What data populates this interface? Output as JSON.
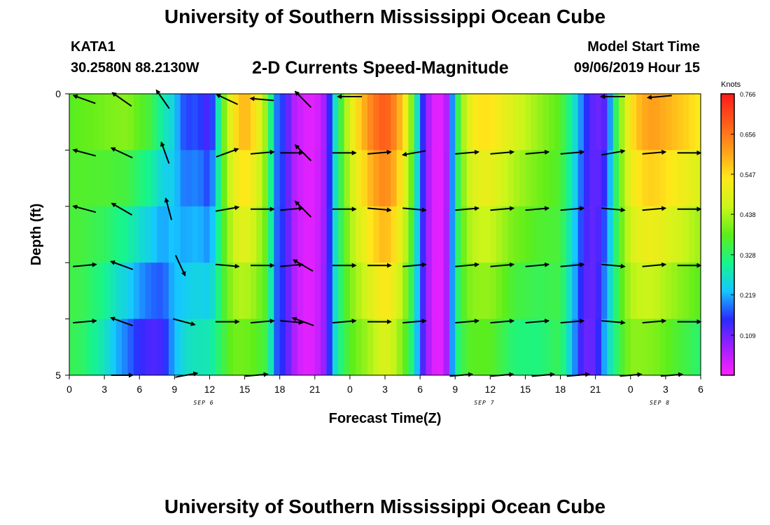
{
  "header": {
    "title": "University of Southern Mississippi Ocean Cube",
    "station": "KATA1",
    "coordinates": "30.2580N 88.2130W",
    "subtitle": "2-D Currents Speed-Magnitude",
    "model_start_label": "Model Start Time",
    "model_start_value": "09/06/2019 Hour 15"
  },
  "footer": {
    "title": "University of Southern Mississippi Ocean Cube"
  },
  "chart_data": {
    "type": "heatmap",
    "title": "2-D Currents Speed-Magnitude",
    "xlabel": "Forecast Time(Z)",
    "ylabel": "Depth (ft)",
    "x_ticks": [
      "0",
      "3",
      "6",
      "9",
      "12",
      "15",
      "18",
      "21",
      "0",
      "3",
      "6",
      "9",
      "12",
      "15",
      "18",
      "21",
      "0",
      "3",
      "6"
    ],
    "x_range_hours": [
      0,
      54
    ],
    "date_labels": [
      {
        "text": "SEP 6",
        "hour": 11.5
      },
      {
        "text": "SEP 7",
        "hour": 35.5
      },
      {
        "text": "SEP 8",
        "hour": 50.5
      }
    ],
    "y_ticks": [
      "0",
      "5"
    ],
    "ylim": [
      0,
      5
    ],
    "colorbar": {
      "label": "Knots",
      "min": 0,
      "max": 0.766,
      "ticks": [
        "0.766",
        "0.656",
        "0.547",
        "0.438",
        "0.328",
        "0.219",
        "0.109"
      ],
      "tick_values": [
        0.766,
        0.656,
        0.547,
        0.438,
        0.328,
        0.219,
        0.109
      ],
      "colors": [
        "#ff22ff",
        "#9f1fff",
        "#2a2aff",
        "#15c8ff",
        "#16f58c",
        "#5eee1a",
        "#ccf51a",
        "#ffe81a",
        "#ff9d1a",
        "#ff5a1a",
        "#ff1a1a"
      ]
    },
    "depth_levels_ft": [
      0,
      1,
      2,
      3,
      4,
      5
    ],
    "speed_profile_surface": [
      [
        0,
        0.38
      ],
      [
        2,
        0.4
      ],
      [
        4,
        0.43
      ],
      [
        5,
        0.44
      ],
      [
        7,
        0.38
      ],
      [
        8,
        0.3
      ],
      [
        9,
        0.25
      ],
      [
        9.5,
        0.18
      ],
      [
        10,
        0.15
      ],
      [
        11,
        0.16
      ],
      [
        12,
        0.1
      ],
      [
        12.5,
        0.2
      ],
      [
        13,
        0.36
      ],
      [
        14,
        0.55
      ],
      [
        15,
        0.62
      ],
      [
        16,
        0.55
      ],
      [
        17,
        0.4
      ],
      [
        17.6,
        0.2
      ],
      [
        18.5,
        0.15
      ],
      [
        19,
        0.07
      ],
      [
        20,
        0.03
      ],
      [
        21,
        0.02
      ],
      [
        22,
        0.08
      ],
      [
        22.5,
        0.22
      ],
      [
        23,
        0.32
      ],
      [
        24,
        0.5
      ],
      [
        25,
        0.6
      ],
      [
        26,
        0.68
      ],
      [
        27,
        0.72
      ],
      [
        28,
        0.65
      ],
      [
        29,
        0.5
      ],
      [
        29.5,
        0.35
      ],
      [
        30,
        0.2
      ],
      [
        30.5,
        0.1
      ],
      [
        31,
        0.03
      ],
      [
        32,
        0.02
      ],
      [
        32.5,
        0.1
      ],
      [
        33,
        0.3
      ],
      [
        34,
        0.5
      ],
      [
        35,
        0.56
      ],
      [
        36,
        0.56
      ],
      [
        38,
        0.5
      ],
      [
        40,
        0.44
      ],
      [
        42,
        0.38
      ],
      [
        43,
        0.3
      ],
      [
        44,
        0.18
      ],
      [
        45,
        0.1
      ],
      [
        46,
        0.12
      ],
      [
        46.5,
        0.28
      ],
      [
        47,
        0.4
      ],
      [
        48,
        0.55
      ],
      [
        49,
        0.62
      ],
      [
        50,
        0.64
      ],
      [
        51,
        0.62
      ],
      [
        52,
        0.6
      ],
      [
        53,
        0.58
      ],
      [
        54,
        0.55
      ]
    ],
    "speed_profile_bottom": [
      [
        0,
        0.34
      ],
      [
        1,
        0.33
      ],
      [
        3,
        0.26
      ],
      [
        4,
        0.2
      ],
      [
        6,
        0.12
      ],
      [
        7,
        0.1
      ],
      [
        8,
        0.12
      ],
      [
        9,
        0.22
      ],
      [
        10,
        0.28
      ],
      [
        12,
        0.3
      ],
      [
        13,
        0.34
      ],
      [
        14,
        0.38
      ],
      [
        16,
        0.36
      ],
      [
        17,
        0.34
      ],
      [
        17.6,
        0.18
      ],
      [
        18.5,
        0.14
      ],
      [
        19,
        0.08
      ],
      [
        20,
        0.02
      ],
      [
        21,
        0.03
      ],
      [
        22,
        0.1
      ],
      [
        22.5,
        0.22
      ],
      [
        23,
        0.3
      ],
      [
        24,
        0.36
      ],
      [
        26,
        0.42
      ],
      [
        27,
        0.46
      ],
      [
        28,
        0.42
      ],
      [
        29,
        0.34
      ],
      [
        29.5,
        0.28
      ],
      [
        30,
        0.16
      ],
      [
        31,
        0.03
      ],
      [
        32,
        0.02
      ],
      [
        32.5,
        0.12
      ],
      [
        33,
        0.3
      ],
      [
        34,
        0.36
      ],
      [
        36,
        0.36
      ],
      [
        38,
        0.3
      ],
      [
        40,
        0.3
      ],
      [
        42,
        0.34
      ],
      [
        43,
        0.22
      ],
      [
        44,
        0.1
      ],
      [
        45,
        0.12
      ],
      [
        46,
        0.26
      ],
      [
        47,
        0.34
      ],
      [
        48,
        0.4
      ],
      [
        50,
        0.38
      ],
      [
        52,
        0.34
      ],
      [
        54,
        0.3
      ]
    ],
    "current_vectors": [
      {
        "hour": 1.3,
        "depth": 0.1,
        "speed": 0.45,
        "dir_deg": 200
      },
      {
        "hour": 4.5,
        "depth": 0.1,
        "speed": 0.45,
        "dir_deg": 215
      },
      {
        "hour": 8,
        "depth": 0.1,
        "speed": 0.4,
        "dir_deg": 235
      },
      {
        "hour": 13.5,
        "depth": 0.1,
        "speed": 0.45,
        "dir_deg": 205
      },
      {
        "hour": 16.5,
        "depth": 0.1,
        "speed": 0.45,
        "dir_deg": 185
      },
      {
        "hour": 20,
        "depth": 0.1,
        "speed": 0.4,
        "dir_deg": 225
      },
      {
        "hour": 24,
        "depth": 0.05,
        "speed": 0.5,
        "dir_deg": 180
      },
      {
        "hour": 46.5,
        "depth": 0.05,
        "speed": 0.5,
        "dir_deg": 180
      },
      {
        "hour": 50.5,
        "depth": 0.05,
        "speed": 0.5,
        "dir_deg": 175
      },
      {
        "hour": 1.3,
        "depth": 1.05,
        "speed": 0.45,
        "dir_deg": 195
      },
      {
        "hour": 4.5,
        "depth": 1.05,
        "speed": 0.45,
        "dir_deg": 205
      },
      {
        "hour": 8.2,
        "depth": 1.05,
        "speed": 0.4,
        "dir_deg": 250
      },
      {
        "hour": 13.5,
        "depth": 1.05,
        "speed": 0.45,
        "dir_deg": -20
      },
      {
        "hour": 16.5,
        "depth": 1.05,
        "speed": 0.45,
        "dir_deg": -5
      },
      {
        "hour": 19,
        "depth": 1.05,
        "speed": 0.4,
        "dir_deg": 0
      },
      {
        "hour": 20,
        "depth": 1.05,
        "speed": 0.4,
        "dir_deg": 225
      },
      {
        "hour": 23.5,
        "depth": 1.05,
        "speed": 0.45,
        "dir_deg": 0
      },
      {
        "hour": 26.5,
        "depth": 1.05,
        "speed": 0.45,
        "dir_deg": -5
      },
      {
        "hour": 29.5,
        "depth": 1.05,
        "speed": 0.45,
        "dir_deg": 170
      },
      {
        "hour": 34,
        "depth": 1.05,
        "speed": 0.45,
        "dir_deg": -5
      },
      {
        "hour": 37,
        "depth": 1.05,
        "speed": 0.45,
        "dir_deg": -5
      },
      {
        "hour": 40,
        "depth": 1.05,
        "speed": 0.45,
        "dir_deg": -5
      },
      {
        "hour": 43,
        "depth": 1.05,
        "speed": 0.45,
        "dir_deg": -5
      },
      {
        "hour": 46.5,
        "depth": 1.05,
        "speed": 0.45,
        "dir_deg": -10
      },
      {
        "hour": 50,
        "depth": 1.05,
        "speed": 0.45,
        "dir_deg": -5
      },
      {
        "hour": 53,
        "depth": 1.05,
        "speed": 0.45,
        "dir_deg": 0
      },
      {
        "hour": 1.3,
        "depth": 2.05,
        "speed": 0.45,
        "dir_deg": 195
      },
      {
        "hour": 4.5,
        "depth": 2.05,
        "speed": 0.45,
        "dir_deg": 210
      },
      {
        "hour": 8.5,
        "depth": 2.05,
        "speed": 0.4,
        "dir_deg": 255
      },
      {
        "hour": 13.5,
        "depth": 2.05,
        "speed": 0.45,
        "dir_deg": -10
      },
      {
        "hour": 16.5,
        "depth": 2.05,
        "speed": 0.45,
        "dir_deg": 0
      },
      {
        "hour": 19,
        "depth": 2.05,
        "speed": 0.4,
        "dir_deg": -5
      },
      {
        "hour": 20,
        "depth": 2.05,
        "speed": 0.4,
        "dir_deg": 225
      },
      {
        "hour": 23.5,
        "depth": 2.05,
        "speed": 0.45,
        "dir_deg": 0
      },
      {
        "hour": 26.5,
        "depth": 2.05,
        "speed": 0.45,
        "dir_deg": 5
      },
      {
        "hour": 29.5,
        "depth": 2.05,
        "speed": 0.45,
        "dir_deg": 5
      },
      {
        "hour": 34,
        "depth": 2.05,
        "speed": 0.45,
        "dir_deg": -5
      },
      {
        "hour": 37,
        "depth": 2.05,
        "speed": 0.45,
        "dir_deg": -5
      },
      {
        "hour": 40,
        "depth": 2.05,
        "speed": 0.45,
        "dir_deg": -5
      },
      {
        "hour": 43,
        "depth": 2.05,
        "speed": 0.45,
        "dir_deg": -5
      },
      {
        "hour": 46.5,
        "depth": 2.05,
        "speed": 0.45,
        "dir_deg": 5
      },
      {
        "hour": 50,
        "depth": 2.05,
        "speed": 0.45,
        "dir_deg": -5
      },
      {
        "hour": 53,
        "depth": 2.05,
        "speed": 0.45,
        "dir_deg": 0
      },
      {
        "hour": 1.3,
        "depth": 3.05,
        "speed": 0.45,
        "dir_deg": -5
      },
      {
        "hour": 4.5,
        "depth": 3.05,
        "speed": 0.45,
        "dir_deg": 200
      },
      {
        "hour": 9.5,
        "depth": 3.05,
        "speed": 0.4,
        "dir_deg": 65
      },
      {
        "hour": 13.5,
        "depth": 3.05,
        "speed": 0.45,
        "dir_deg": 5
      },
      {
        "hour": 16.5,
        "depth": 3.05,
        "speed": 0.45,
        "dir_deg": 0
      },
      {
        "hour": 19,
        "depth": 3.05,
        "speed": 0.4,
        "dir_deg": -5
      },
      {
        "hour": 20,
        "depth": 3.05,
        "speed": 0.4,
        "dir_deg": 210
      },
      {
        "hour": 23.5,
        "depth": 3.05,
        "speed": 0.45,
        "dir_deg": 0
      },
      {
        "hour": 26.5,
        "depth": 3.05,
        "speed": 0.45,
        "dir_deg": 0
      },
      {
        "hour": 29.5,
        "depth": 3.05,
        "speed": 0.45,
        "dir_deg": -5
      },
      {
        "hour": 34,
        "depth": 3.05,
        "speed": 0.45,
        "dir_deg": -5
      },
      {
        "hour": 37,
        "depth": 3.05,
        "speed": 0.45,
        "dir_deg": -5
      },
      {
        "hour": 40,
        "depth": 3.05,
        "speed": 0.45,
        "dir_deg": -5
      },
      {
        "hour": 43,
        "depth": 3.05,
        "speed": 0.45,
        "dir_deg": -5
      },
      {
        "hour": 46.5,
        "depth": 3.05,
        "speed": 0.45,
        "dir_deg": 5
      },
      {
        "hour": 50,
        "depth": 3.05,
        "speed": 0.45,
        "dir_deg": -5
      },
      {
        "hour": 53,
        "depth": 3.05,
        "speed": 0.45,
        "dir_deg": 0
      },
      {
        "hour": 1.3,
        "depth": 4.05,
        "speed": 0.45,
        "dir_deg": -5
      },
      {
        "hour": 4.5,
        "depth": 4.05,
        "speed": 0.45,
        "dir_deg": 200
      },
      {
        "hour": 9.8,
        "depth": 4.05,
        "speed": 0.4,
        "dir_deg": 15
      },
      {
        "hour": 13.5,
        "depth": 4.05,
        "speed": 0.45,
        "dir_deg": 0
      },
      {
        "hour": 16.5,
        "depth": 4.05,
        "speed": 0.45,
        "dir_deg": -5
      },
      {
        "hour": 19,
        "depth": 4.05,
        "speed": 0.4,
        "dir_deg": 5
      },
      {
        "hour": 20,
        "depth": 4.05,
        "speed": 0.4,
        "dir_deg": 200
      },
      {
        "hour": 23.5,
        "depth": 4.05,
        "speed": 0.45,
        "dir_deg": -5
      },
      {
        "hour": 26.5,
        "depth": 4.05,
        "speed": 0.45,
        "dir_deg": 0
      },
      {
        "hour": 29.5,
        "depth": 4.05,
        "speed": 0.45,
        "dir_deg": -5
      },
      {
        "hour": 34,
        "depth": 4.05,
        "speed": 0.45,
        "dir_deg": -5
      },
      {
        "hour": 37,
        "depth": 4.05,
        "speed": 0.45,
        "dir_deg": -5
      },
      {
        "hour": 40,
        "depth": 4.05,
        "speed": 0.45,
        "dir_deg": -5
      },
      {
        "hour": 43,
        "depth": 4.05,
        "speed": 0.45,
        "dir_deg": -5
      },
      {
        "hour": 46.5,
        "depth": 4.05,
        "speed": 0.45,
        "dir_deg": 5
      },
      {
        "hour": 50,
        "depth": 4.05,
        "speed": 0.45,
        "dir_deg": -5
      },
      {
        "hour": 53,
        "depth": 4.05,
        "speed": 0.45,
        "dir_deg": 0
      },
      {
        "hour": 4.5,
        "depth": 5.0,
        "speed": 0.35,
        "dir_deg": 0
      },
      {
        "hour": 10,
        "depth": 5.0,
        "speed": 0.4,
        "dir_deg": -10
      },
      {
        "hour": 16,
        "depth": 5.0,
        "speed": 0.4,
        "dir_deg": -5
      },
      {
        "hour": 33.5,
        "depth": 5.0,
        "speed": 0.4,
        "dir_deg": -5
      },
      {
        "hour": 37,
        "depth": 5.0,
        "speed": 0.4,
        "dir_deg": -5
      },
      {
        "hour": 40.5,
        "depth": 5.0,
        "speed": 0.4,
        "dir_deg": -5
      },
      {
        "hour": 43.5,
        "depth": 5.0,
        "speed": 0.4,
        "dir_deg": -5
      },
      {
        "hour": 48,
        "depth": 5.0,
        "speed": 0.35,
        "dir_deg": -5
      },
      {
        "hour": 51.5,
        "depth": 5.0,
        "speed": 0.35,
        "dir_deg": -5
      }
    ]
  }
}
